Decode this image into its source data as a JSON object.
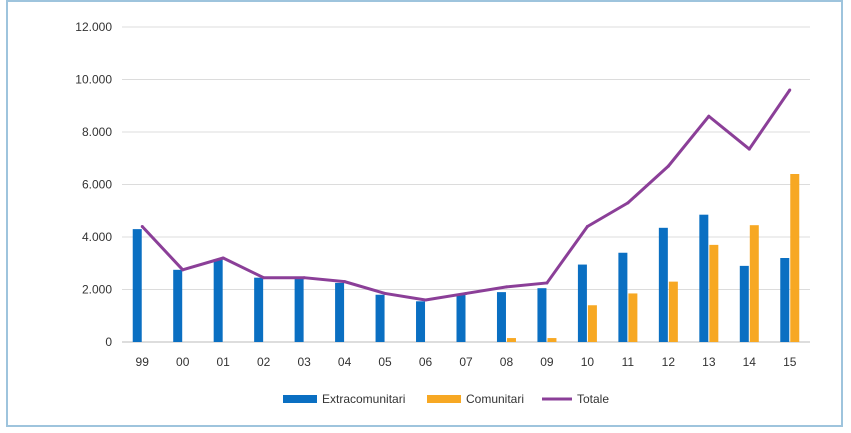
{
  "chart_data": {
    "type": "bar",
    "categories": [
      "99",
      "00",
      "01",
      "02",
      "03",
      "04",
      "05",
      "06",
      "07",
      "08",
      "09",
      "10",
      "11",
      "12",
      "13",
      "14",
      "15"
    ],
    "series": [
      {
        "name": "Extracomunitari",
        "type": "bar",
        "color": "#0a6fc2",
        "values": [
          4300,
          2750,
          3150,
          2450,
          2400,
          2250,
          1800,
          1550,
          1800,
          1900,
          2050,
          2950,
          3400,
          4350,
          4850,
          2900,
          3200
        ]
      },
      {
        "name": "Comunitari",
        "type": "bar",
        "color": "#f7a823",
        "values": [
          0,
          0,
          0,
          0,
          0,
          0,
          0,
          0,
          0,
          150,
          150,
          1400,
          1850,
          2300,
          3700,
          4450,
          6400
        ]
      },
      {
        "name": "Totale",
        "type": "line",
        "color": "#8b3f98",
        "values": [
          4400,
          2750,
          3200,
          2450,
          2450,
          2300,
          1850,
          1600,
          1850,
          2100,
          2250,
          4400,
          5300,
          6700,
          8600,
          7350,
          9600
        ]
      }
    ],
    "yticks": [
      "0",
      "2.000",
      "4.000",
      "6.000",
      "8.000",
      "10.000",
      "12.000"
    ],
    "ylim": [
      0,
      12000
    ],
    "grid": true,
    "legend_position": "bottom"
  }
}
